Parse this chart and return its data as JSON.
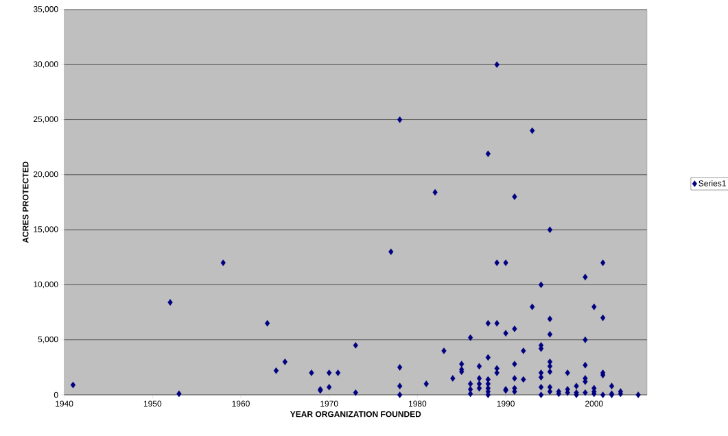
{
  "chart_data": {
    "type": "scatter",
    "xlabel": "YEAR ORGANIZATION FOUNDED",
    "ylabel": "ACRES PROTECTED",
    "x": [
      1941,
      1952,
      1953,
      1958,
      1963,
      1964,
      1965,
      1968,
      1969,
      1969,
      1970,
      1970,
      1971,
      1973,
      1973,
      1977,
      1978,
      1978,
      1978,
      1978,
      1981,
      1982,
      1983,
      1984,
      1985,
      1985,
      1985,
      1986,
      1986,
      1986,
      1986,
      1987,
      1987,
      1987,
      1987,
      1988,
      1988,
      1988,
      1988,
      1988,
      1988,
      1988,
      1988,
      1989,
      1989,
      1989,
      1989,
      1989,
      1990,
      1990,
      1990,
      1990,
      1991,
      1991,
      1991,
      1991,
      1991,
      1991,
      1992,
      1992,
      1993,
      1993,
      1994,
      1994,
      1994,
      1994,
      1994,
      1994,
      1994,
      1995,
      1995,
      1995,
      1995,
      1995,
      1995,
      1995,
      1995,
      1996,
      1996,
      1997,
      1997,
      1997,
      1998,
      1998,
      1998,
      1999,
      1999,
      1999,
      1999,
      1999,
      1999,
      2000,
      2000,
      2000,
      2000,
      2001,
      2001,
      2001,
      2001,
      2001,
      2002,
      2002,
      2002,
      2003,
      2003,
      2005
    ],
    "series": [
      {
        "name": "Series1",
        "color": "#000080",
        "values": [
          900,
          8400,
          100,
          12000,
          6500,
          2200,
          3000,
          2000,
          500,
          400,
          2000,
          700,
          2000,
          4500,
          200,
          13000,
          25000,
          2500,
          800,
          0,
          1000,
          18400,
          4000,
          1500,
          2800,
          2300,
          2100,
          5200,
          1000,
          500,
          100,
          2600,
          1500,
          1000,
          600,
          21900,
          6500,
          3400,
          1400,
          1000,
          600,
          300,
          0,
          30000,
          12000,
          6500,
          2400,
          2000,
          12000,
          5600,
          500,
          400,
          18000,
          6000,
          2800,
          1500,
          600,
          300,
          4000,
          1400,
          24000,
          8000,
          10000,
          4500,
          4200,
          2000,
          1600,
          700,
          0,
          15000,
          6900,
          5500,
          3000,
          2600,
          2100,
          700,
          300,
          300,
          100,
          2000,
          500,
          200,
          800,
          200,
          0,
          10700,
          5000,
          2700,
          1500,
          1200,
          200,
          8000,
          600,
          300,
          100,
          12000,
          7000,
          2000,
          1800,
          0,
          800,
          100,
          0,
          300,
          100,
          0
        ]
      }
    ],
    "xlim": [
      1940,
      2006
    ],
    "xticks": [
      1940,
      1950,
      1960,
      1970,
      1980,
      1990,
      2000
    ],
    "ylim": [
      0,
      35000
    ],
    "yticks": [
      0,
      {
        "value": 5000,
        "label": "5,000"
      },
      {
        "value": 10000,
        "label": "10,000"
      },
      {
        "value": 15000,
        "label": "15,000"
      },
      {
        "value": 20000,
        "label": "20,000"
      },
      {
        "value": 25000,
        "label": "25,000"
      },
      {
        "value": 30000,
        "label": "30,000"
      },
      {
        "value": 35000,
        "label": "35,000"
      }
    ],
    "grid": "y",
    "legend": "right",
    "marker": "diamond"
  }
}
